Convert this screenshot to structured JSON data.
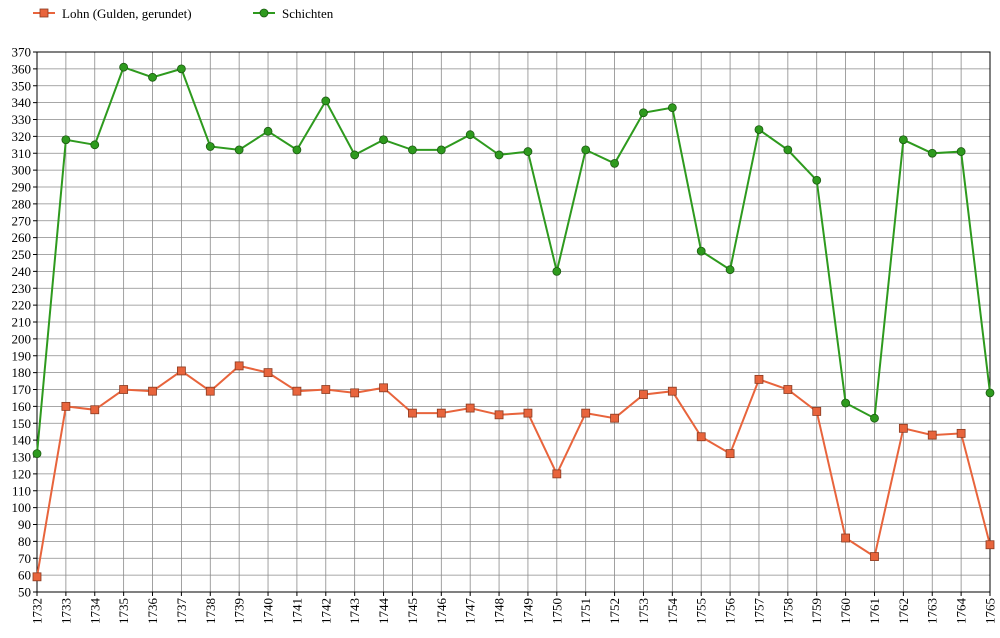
{
  "chart_data": {
    "type": "line",
    "title": "",
    "xlabel": "",
    "ylabel": "",
    "ylim": [
      50,
      370
    ],
    "y_tick_step": 10,
    "grid": true,
    "legend_position": "top-left",
    "x": [
      1732,
      1733,
      1734,
      1735,
      1736,
      1737,
      1738,
      1739,
      1740,
      1741,
      1742,
      1743,
      1744,
      1745,
      1746,
      1747,
      1748,
      1749,
      1750,
      1751,
      1752,
      1753,
      1754,
      1755,
      1756,
      1757,
      1758,
      1759,
      1760,
      1761,
      1762,
      1763,
      1764,
      1765
    ],
    "series": [
      {
        "name": "Lohn (Gulden, gerundet)",
        "color": "#e8643c",
        "marker": "square",
        "values": [
          59,
          160,
          158,
          170,
          169,
          181,
          169,
          184,
          180,
          169,
          170,
          168,
          171,
          156,
          156,
          159,
          155,
          156,
          120,
          156,
          153,
          167,
          169,
          142,
          132,
          176,
          170,
          157,
          82,
          71,
          147,
          143,
          144,
          78
        ]
      },
      {
        "name": "Schichten",
        "color": "#2e9a1e",
        "marker": "circle",
        "values": [
          132,
          318,
          315,
          361,
          355,
          360,
          314,
          312,
          323,
          312,
          341,
          309,
          318,
          312,
          312,
          321,
          309,
          311,
          240,
          312,
          304,
          334,
          337,
          252,
          241,
          324,
          312,
          294,
          162,
          153,
          318,
          310,
          311,
          168
        ]
      }
    ]
  }
}
